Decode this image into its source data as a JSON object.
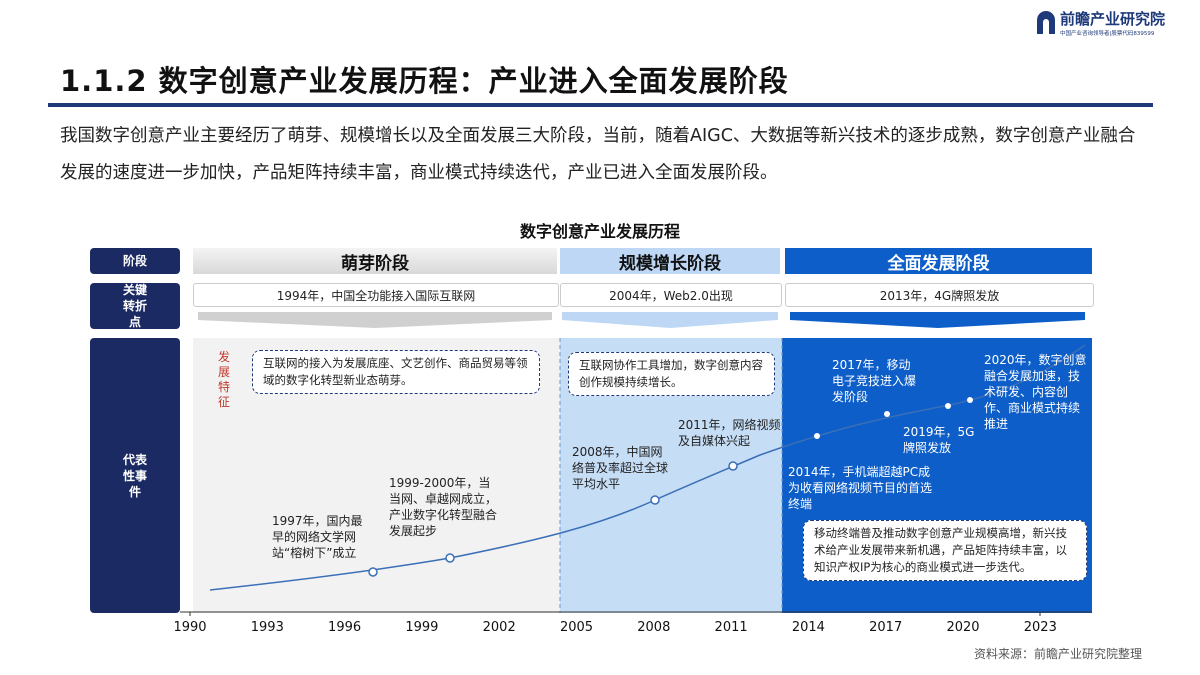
{
  "header": {
    "title": "1.1.2 数字创意产业发展历程：产业进入全面发展阶段",
    "logo": "前瞻产业研究院",
    "logo_sub": "中国产业咨询领导者|股票代码839599"
  },
  "intro": "我国数字创意产业主要经历了萌芽、规模增长以及全面发展三大阶段，当前，随着AIGC、大数据等新兴技术的逐步成熟，数字创意产业融合发展的速度进一步加快，产品矩阵持续丰富，商业模式持续迭代，产业已进入全面发展阶段。",
  "diagram": {
    "title": "数字创意产业发展历程",
    "row_labels": [
      "阶段",
      "关键转折点",
      "代表性事件"
    ],
    "stages": [
      {
        "name": "萌芽阶段",
        "turning_point": "1994年，中国全功能接入国际互联网",
        "feature": "互联网的接入为发展底座、文艺创作、商品贸易等领域的数字化转型新业态萌芽。"
      },
      {
        "name": "规模增长阶段",
        "turning_point": "2004年，Web2.0出现",
        "feature": "互联网协作工具增加，数字创意内容创作规模持续增长。"
      },
      {
        "name": "全面发展阶段",
        "turning_point": "2013年，4G牌照发放",
        "feature": "移动终端普及推动数字创意产业规模高增，新兴技术给产业发展带来新机遇，产品矩阵持续丰富，以知识产权IP为核心的商业模式进一步迭代。"
      }
    ],
    "feature_label": "发展特征",
    "events": [
      "1997年，国内最早的网络文学网站“榕树下”成立",
      "1999-2000年，当当网、卓越网成立，产业数字化转型融合发展起步",
      "2008年，中国网络普及率超过全球平均水平",
      "2011年，网络视频及自媒体兴起",
      "2014年，手机端超越PC成为收看网络视频节目的首选终端",
      "2017年，移动电子竞技进入爆发阶段",
      "2019年，5G牌照发放",
      "2020年，数字创意融合发展加速，技术研发、内容创作、商业模式持续推进"
    ],
    "axis": [
      "1990",
      "1993",
      "1996",
      "1999",
      "2002",
      "2005",
      "2008",
      "2011",
      "2014",
      "2017",
      "2020",
      "2023"
    ]
  },
  "source": "资料来源：前瞻产业研究院整理"
}
